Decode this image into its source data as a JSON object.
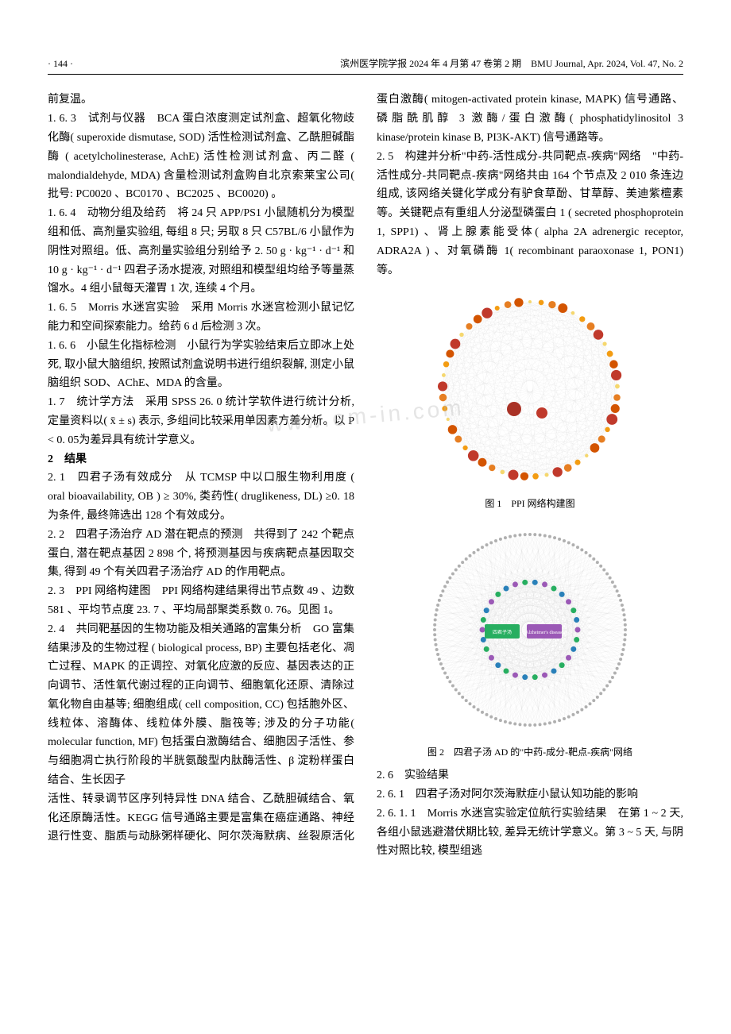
{
  "header": {
    "page_number": "· 144 ·",
    "journal": "滨州医学院学报 2024 年 4 月第 47 卷第 2 期　BMU Journal, Apr. 2024, Vol. 47, No. 2"
  },
  "paragraphs": {
    "p0": "前复温。",
    "p1": "1. 6. 3　试剂与仪器　BCA 蛋白浓度测定试剂盒、超氧化物歧化酶( superoxide dismutase, SOD) 活性检测试剂盒、乙酰胆碱酯酶 ( acetylcholinesterase, AchE) 活性检测试剂盒、丙二醛 ( malondialdehyde, MDA) 含量检测试剂盒购自北京索莱宝公司( 批号: PC0020 、BC0170 、BC2025 、BC0020) 。",
    "p2": "1. 6. 4　动物分组及给药　将 24 只 APP/PS1 小鼠随机分为模型组和低、高剂量实验组, 每组 8 只; 另取 8 只 C57BL/6 小鼠作为阴性对照组。低、高剂量实验组分别给予 2. 50 g · kg⁻¹ · d⁻¹ 和 10 g · kg⁻¹ · d⁻¹ 四君子汤水提液, 对照组和模型组均给予等量蒸馏水。4 组小鼠每天灌胃 1 次, 连续 4 个月。",
    "p3": "1. 6. 5　Morris 水迷宫实验　采用 Morris 水迷宫检测小鼠记忆能力和空间探索能力。给药 6 d 后检测 3 次。",
    "p4": "1. 6. 6　小鼠生化指标检测　小鼠行为学实验结束后立即冰上处死, 取小鼠大脑组织, 按照试剂盒说明书进行组织裂解, 测定小鼠脑组织 SOD、AChE、MDA 的含量。",
    "p5": "1. 7　统计学方法　采用 SPSS 26. 0 统计学软件进行统计分析, 定量资料以( x̄ ± s) 表示, 多组间比较采用单因素方差分析。以 P < 0. 05为差异具有统计学意义。",
    "p6": "2　结果",
    "p7": "2. 1　四君子汤有效成分　从 TCMSP 中以口服生物利用度 ( oral bioavailability, OB ) ≥ 30%, 类药性( druglikeness, DL) ≥0. 18 为条件, 最终筛选出 128 个有效成分。",
    "p8": "2. 2　四君子汤治疗 AD 潜在靶点的预测　共得到了 242 个靶点蛋白, 潜在靶点基因 2 898 个, 将预测基因与疾病靶点基因取交集, 得到 49 个有关四君子汤治疗 AD 的作用靶点。",
    "p9": "2. 3　PPI 网络构建图　PPI 网络构建结果得出节点数 49 、边数 581 、平均节点度 23. 7 、平均局部聚类系数 0. 76。见图 1。",
    "p10": "2. 4　共同靶基因的生物功能及相关通路的富集分析　GO 富集结果涉及的生物过程 ( biological process, BP) 主要包括老化、凋亡过程、MAPK 的正调控、对氧化应激的反应、基因表达的正向调节、活性氧代谢过程的正向调节、细胞氧化还原、清除过氧化物自由基等; 细胞组成( cell composition, CC) 包括胞外区、线粒体、溶酶体、线粒体外膜、脂筏等; 涉及的分子功能( molecular function, MF) 包括蛋白激酶结合、细胞因子活性、参与细胞凋亡执行阶段的半胱氨酸型内肽酶活性、β 淀粉样蛋白结合、生长因子",
    "p11": "活性、转录调节区序列特异性 DNA 结合、乙酰胆碱结合、氧化还原酶活性。KEGG 信号通路主要是富集在癌症通路、神经退行性变、脂质与动脉粥样硬化、阿尔茨海默病、丝裂原活化蛋白激酶( mitogen-activated protein kinase, MAPK) 信号通路、磷脂酰肌醇 3 激酶/蛋白激酶( phosphatidylinositol 3 kinase/protein kinase B, PI3K-AKT) 信号通路等。",
    "p12": "2. 5　构建并分析\"中药-活性成分-共同靶点-疾病\"网络　\"中药-活性成分-共同靶点-疾病\"网络共由 164 个节点及 2 010 条连边组成, 该网络关键化学成分有驴食草酚、甘草醇、美迪紫檀素等。关键靶点有重组人分泌型磷蛋白 1 ( secreted phosphoprotein 1, SPP1) 、肾上腺素能受体( alpha 2A adrenergic receptor, ADRA2A ) 、对氧磷酶 1( recombinant paraoxonase 1, PON1) 等。",
    "p13": "2. 6　实验结果",
    "p14": "2. 6. 1　四君子汤对阿尔茨海默症小鼠认知功能的影响",
    "p15": "2. 6. 1. 1　Morris 水迷宫实验定位航行实验结果　在第 1 ~ 2 天, 各组小鼠逃避潜伏期比较, 差异无统计学意义。第 3 ~ 5 天, 与阴性对照比较, 模型组逃"
  },
  "figures": {
    "fig1": {
      "caption": "图 1　PPI 网络构建图",
      "type": "network",
      "node_count": 49,
      "edge_count": 581,
      "background": "#ffffff",
      "edge_color": "#b8b8b8",
      "node_colors": [
        "#f5d76e",
        "#f39c12",
        "#e67e22",
        "#d35400",
        "#c0392b",
        "#a93226"
      ],
      "node_size_range": [
        4,
        14
      ],
      "radius": 110,
      "svg_size": 260
    },
    "fig2": {
      "caption": "图 2　四君子汤 AD 的\"中药-成分-靶点-疾病\"网络",
      "type": "network",
      "node_count": 164,
      "edge_count": 2010,
      "background": "#ffffff",
      "edge_color": "#c8c8c8",
      "outer_node_color": "#b0b0b0",
      "inner_node_colors": [
        "#9b59b6",
        "#27ae60",
        "#2980b9"
      ],
      "center_labels": [
        "四君子汤",
        "Alzheimer's disease"
      ],
      "center_label_colors": [
        "#27ae60",
        "#9b59b6"
      ],
      "outer_radius": 120,
      "inner_radius": 60,
      "svg_size": 280
    }
  },
  "watermark": "www.em-in.com"
}
